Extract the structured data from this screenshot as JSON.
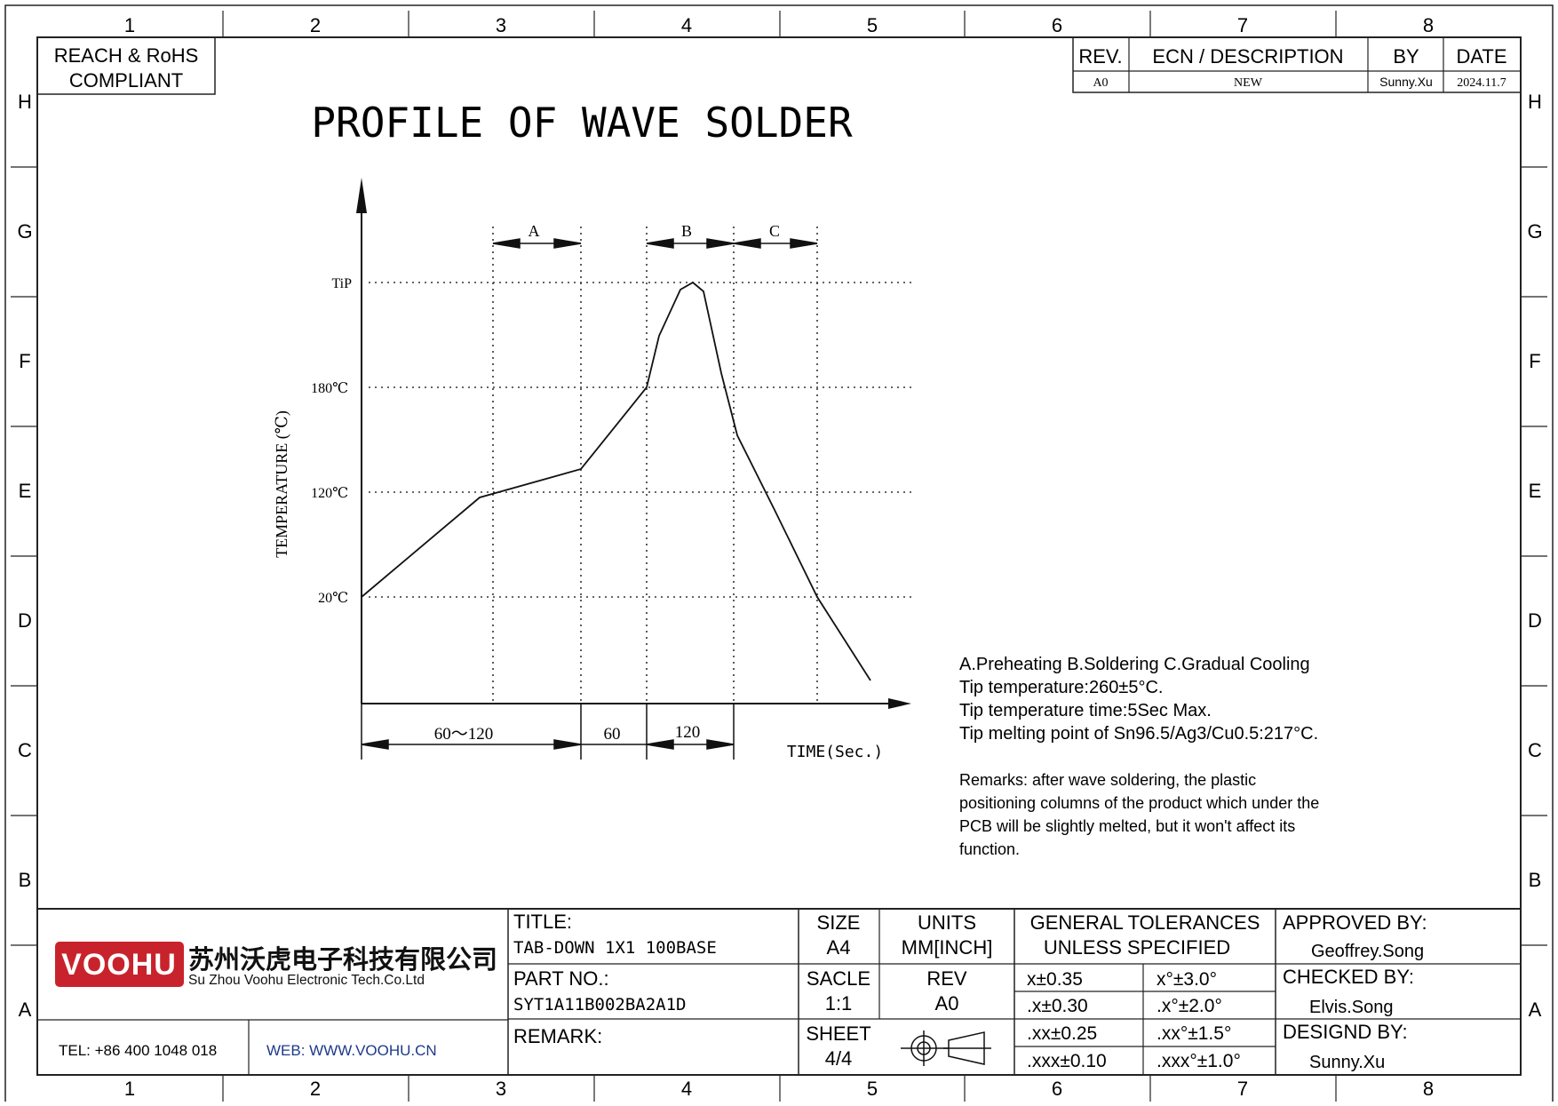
{
  "frame": {
    "columns": [
      "1",
      "2",
      "3",
      "4",
      "5",
      "6",
      "7",
      "8"
    ],
    "rows": [
      "H",
      "G",
      "F",
      "E",
      "D",
      "C",
      "B",
      "A"
    ]
  },
  "compliance": {
    "line1": "REACH & RoHS",
    "line2": "COMPLIANT"
  },
  "revision_table": {
    "headers": [
      "REV.",
      "ECN / DESCRIPTION",
      "BY",
      "DATE"
    ],
    "rows": [
      [
        "A0",
        "NEW",
        "Sunny.Xu",
        "2024.11.7"
      ]
    ]
  },
  "drawing_title": "PROFILE OF WAVE SOLDER",
  "chart_data": {
    "type": "line",
    "ylabel": "TEMPERATURE (℃)",
    "xlabel": "TIME(Sec.)",
    "y_ticks": [
      "TiP",
      "180℃",
      "120℃",
      "20℃"
    ],
    "zones": [
      {
        "label": "A"
      },
      {
        "label": "B"
      },
      {
        "label": "C"
      }
    ],
    "time_segments": [
      "60～120",
      "60",
      "120"
    ]
  },
  "notes": {
    "lines": [
      "A.Preheating  B.Soldering  C.Gradual Cooling",
      "Tip temperature:260±5°C.",
      "Tip temperature time:5Sec Max.",
      "Tip melting point of Sn96.5/Ag3/Cu0.5:217°C."
    ],
    "remarks": [
      "Remarks: after wave soldering, the plastic",
      "positioning columns of the product  which under the",
      "PCB will be slightly melted, but it won't affect its",
      "function."
    ]
  },
  "title_block": {
    "logo_text": "VOOHU",
    "company_cn": "苏州沃虎电子科技有限公司",
    "company_en": "Su Zhou Voohu Electronic Tech.Co.Ltd",
    "tel": "TEL: +86 400 1048 018",
    "web": "WEB: WWW.VOOHU.CN",
    "title_label": "TITLE:",
    "title_value": "TAB-DOWN 1X1 100BASE",
    "part_label": "PART NO.:",
    "part_value": "SYT1A11B002BA2A1D",
    "remark_label": "REMARK:",
    "size_label": "SIZE",
    "size_value": "A4",
    "units_label": "UNITS",
    "units_value": "MM[INCH]",
    "scale_label": "SACLE",
    "scale_value": "1:1",
    "rev_label": "REV",
    "rev_value": "A0",
    "sheet_label": "SHEET",
    "sheet_value": "4/4",
    "tolerances_line1": "GENERAL TOLERANCES",
    "tolerances_line2": "UNLESS SPECIFIED",
    "tolerances": [
      [
        "x±0.35",
        "x°±3.0°"
      ],
      [
        ".x±0.30",
        ".x°±2.0°"
      ],
      [
        ".xx±0.25",
        ".xx°±1.5°"
      ],
      [
        ".xxx±0.10",
        ".xxx°±1.0°"
      ]
    ],
    "approved_label": "APPROVED BY:",
    "approved_value": "Geoffrey.Song",
    "checked_label": "CHECKED BY:",
    "checked_value": "Elvis.Song",
    "designed_label": "DESIGND BY:",
    "designed_value": "Sunny.Xu"
  }
}
